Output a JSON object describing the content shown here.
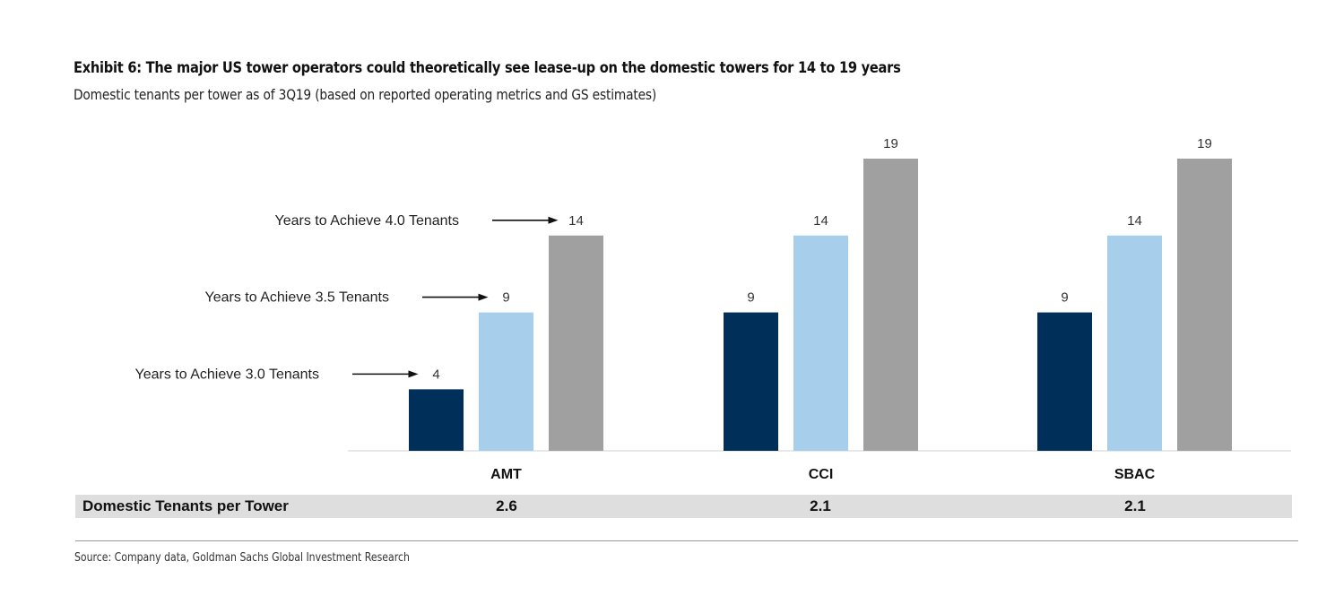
{
  "title": "Exhibit 6: The major US tower operators could theoretically see lease-up on the domestic towers for 14 to 19 years",
  "subtitle": "Domestic tenants per tower as of 3Q19 (based on reported operating metrics and GS estimates)",
  "chart_data": {
    "type": "bar",
    "categories": [
      "AMT",
      "CCI",
      "SBAC"
    ],
    "series": [
      {
        "name": "Years to Achieve 3.0 Tenants",
        "values": [
          4,
          9,
          9
        ],
        "color": "#00305a"
      },
      {
        "name": "Years to Achieve 3.5 Tenants",
        "values": [
          9,
          14,
          14
        ],
        "color": "#a7cfec"
      },
      {
        "name": "Years to Achieve 4.0 Tenants",
        "values": [
          14,
          19,
          19
        ],
        "color": "#a0a0a0"
      }
    ],
    "data_labels": true,
    "ylim": [
      0,
      19
    ],
    "grid": false,
    "legend": "annotations with arrows to the left of the first category"
  },
  "table": {
    "row_label": "Domestic Tenants per Tower",
    "values": [
      "2.6",
      "2.1",
      "2.1"
    ]
  },
  "source": "Source: Company data, Goldman Sachs Global Investment Research"
}
